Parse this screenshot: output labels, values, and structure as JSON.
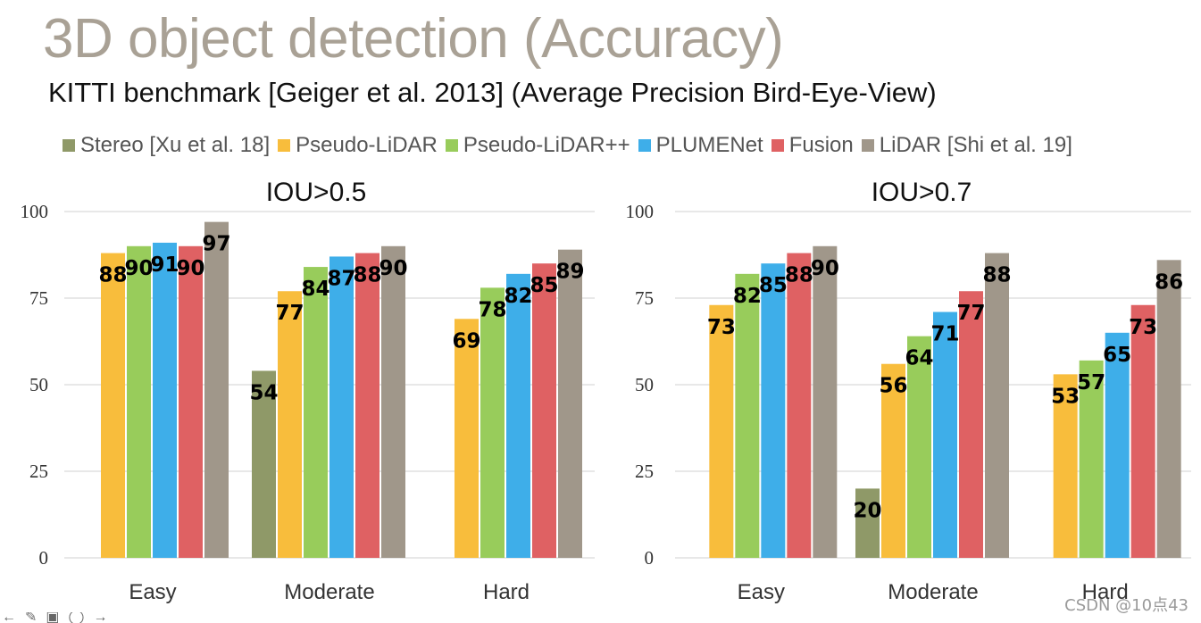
{
  "slide": {
    "title": "3D object detection (Accuracy)",
    "subtitle": "KITTI benchmark [Geiger et al. 2013] (Average Precision Bird-Eye-View)",
    "watermark": "CSDN @10点43"
  },
  "legend": [
    {
      "label": "Stereo [Xu et al. 18]",
      "color": "#8f9968"
    },
    {
      "label": "Pseudo-LiDAR",
      "color": "#f8bd3c"
    },
    {
      "label": "Pseudo-LiDAR++",
      "color": "#98cc5b"
    },
    {
      "label": "PLUMENet",
      "color": "#3eaee9"
    },
    {
      "label": "Fusion",
      "color": "#df6163"
    },
    {
      "label": "LiDAR [Shi et al. 19]",
      "color": "#a0978a"
    }
  ],
  "chart_data": [
    {
      "type": "bar",
      "title": "IOU>0.5",
      "categories": [
        "Easy",
        "Moderate",
        "Hard"
      ],
      "ylim": [
        0,
        100
      ],
      "yticks": [
        0,
        25,
        50,
        75,
        100
      ],
      "grid": true,
      "series": [
        {
          "name": "Stereo [Xu et al. 18]",
          "values": [
            null,
            54,
            null
          ]
        },
        {
          "name": "Pseudo-LiDAR",
          "values": [
            88,
            77,
            69
          ]
        },
        {
          "name": "Pseudo-LiDAR++",
          "values": [
            90,
            84,
            78
          ]
        },
        {
          "name": "PLUMENet",
          "values": [
            91,
            87,
            82
          ]
        },
        {
          "name": "Fusion",
          "values": [
            90,
            88,
            85
          ]
        },
        {
          "name": "LiDAR [Shi et al. 19]",
          "values": [
            97,
            90,
            89
          ]
        }
      ]
    },
    {
      "type": "bar",
      "title": "IOU>0.7",
      "categories": [
        "Easy",
        "Moderate",
        "Hard"
      ],
      "ylim": [
        0,
        100
      ],
      "yticks": [
        0,
        25,
        50,
        75,
        100
      ],
      "grid": true,
      "series": [
        {
          "name": "Stereo [Xu et al. 18]",
          "values": [
            null,
            20,
            null
          ]
        },
        {
          "name": "Pseudo-LiDAR",
          "values": [
            73,
            56,
            53
          ]
        },
        {
          "name": "Pseudo-LiDAR++",
          "values": [
            82,
            64,
            57
          ]
        },
        {
          "name": "PLUMENet",
          "values": [
            85,
            71,
            65
          ]
        },
        {
          "name": "Fusion",
          "values": [
            88,
            77,
            73
          ]
        },
        {
          "name": "LiDAR [Shi et al. 19]",
          "values": [
            90,
            88,
            86
          ]
        }
      ]
    }
  ]
}
